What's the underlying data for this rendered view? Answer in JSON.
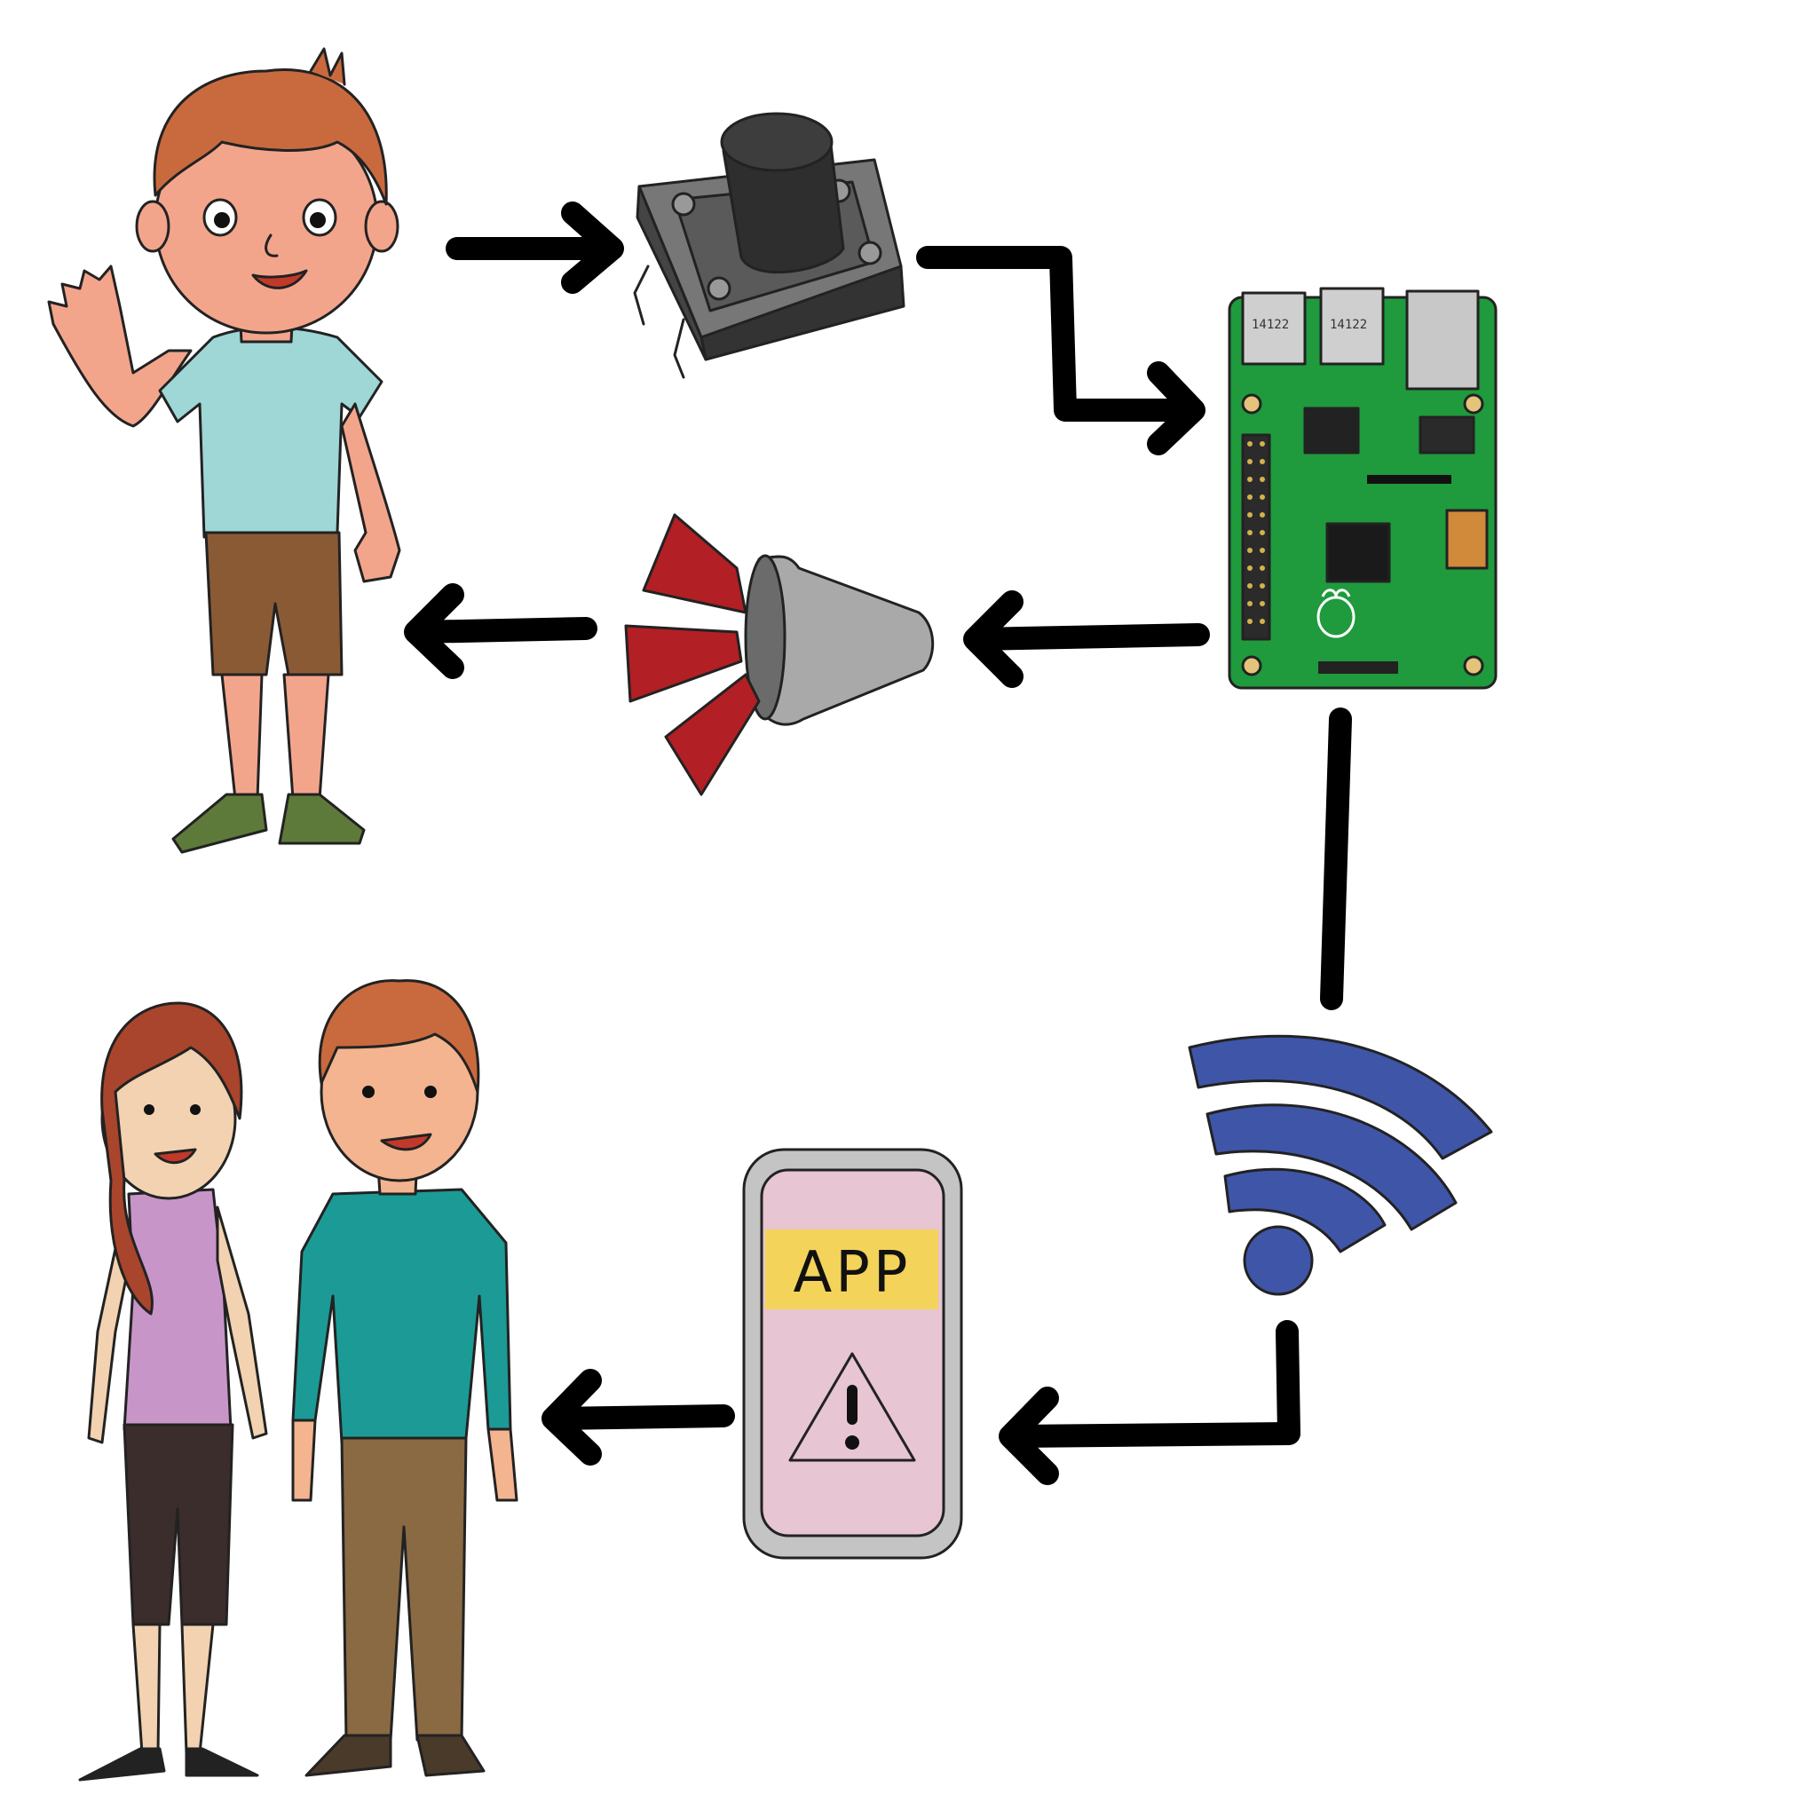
{
  "phone": {
    "app_label": "APP"
  },
  "raspberry_pi": {
    "usb_label_1": "14122",
    "usb_label_2": "14122"
  },
  "colors": {
    "skin": "#f3a58c",
    "hair": "#c96a3e",
    "boy_shirt": "#9fd6d6",
    "boy_shorts": "#8a5a35",
    "shoes": "#5d7a3a",
    "board": "#1f9a3c",
    "speaker_rays": "#b21f24",
    "wifi": "#3f55a8",
    "app_banner": "#f4d35a",
    "phone_screen": "#e7c5d3",
    "teal_shirt": "#1c9a96",
    "lilac_top": "#c895c9"
  }
}
